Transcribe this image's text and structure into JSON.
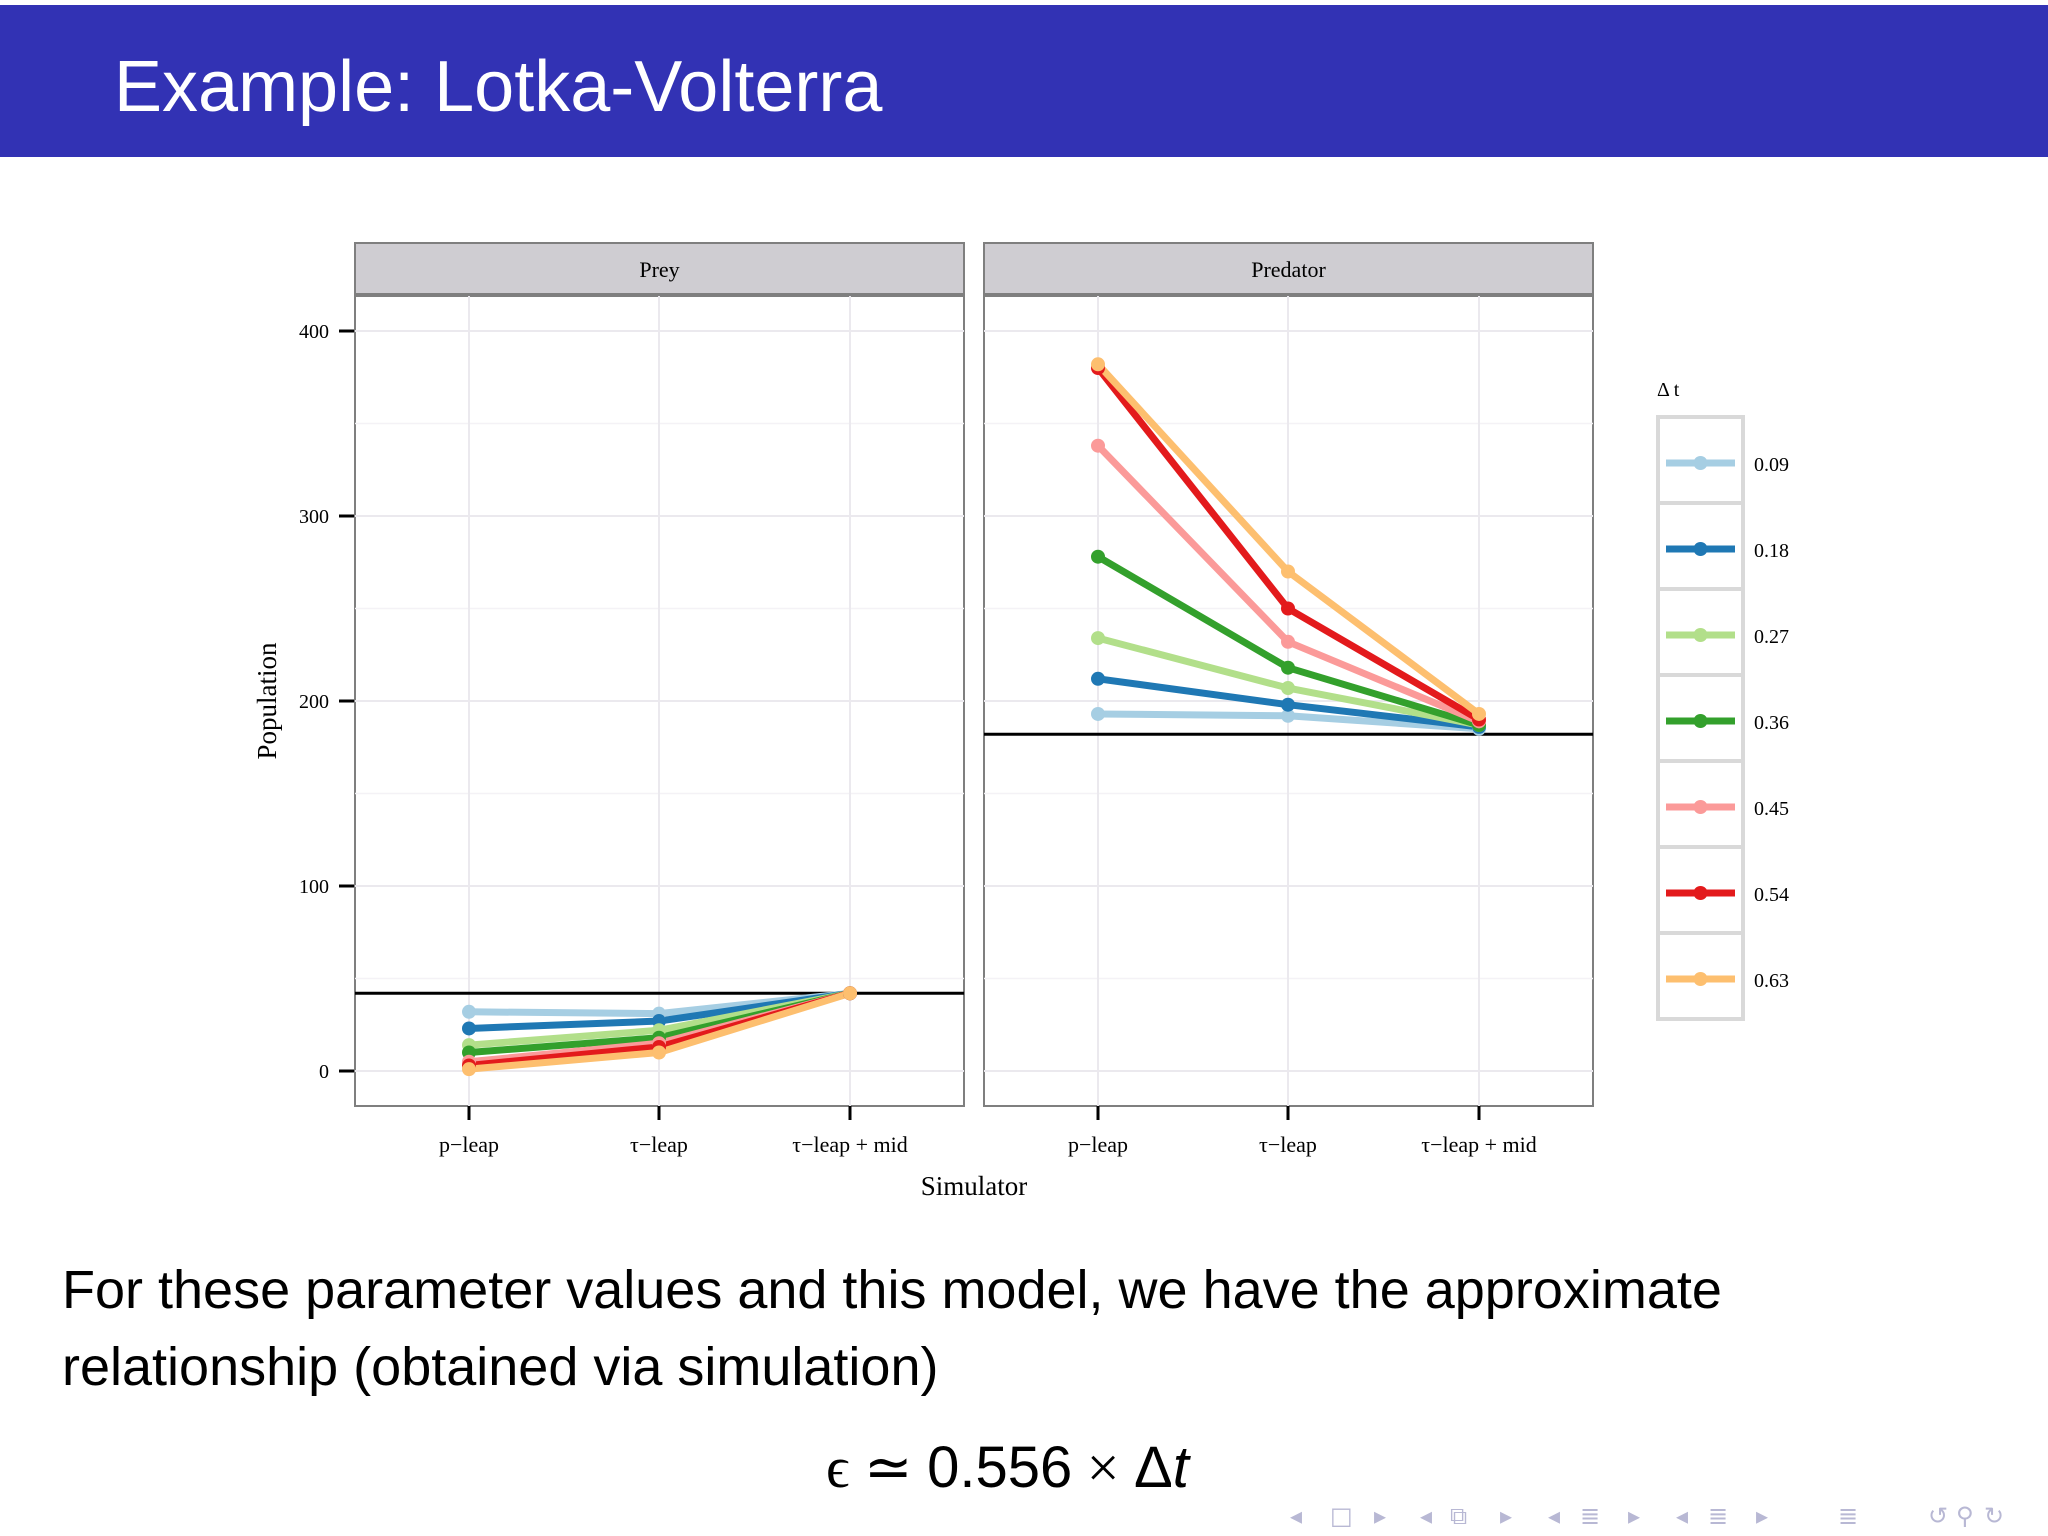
{
  "slide": {
    "title": "Example: Lotka-Volterra",
    "body": "For these parameter values and this model, we have the approximate relationship (obtained via simulation)",
    "formula": {
      "epsilon": "ϵ",
      "approx": "≃",
      "coefficient": "0.556",
      "times": "×",
      "delta": "Δ",
      "variable": "t"
    }
  },
  "navigation": {
    "icons": [
      "nav-left-arrow-icon",
      "frame-icon",
      "nav-right-arrow-icon",
      "nav-left-arrow-icon",
      "frames-icon",
      "nav-right-arrow-icon",
      "nav-left-arrow-icon",
      "subsection-icon",
      "nav-right-arrow-icon",
      "nav-left-arrow-icon",
      "section-icon",
      "nav-right-arrow-icon",
      "toc-icon",
      "back-icon",
      "search-icon",
      "forward-icon"
    ]
  },
  "chart_data": {
    "type": "line",
    "xlabel": "Simulator",
    "ylabel": "Population",
    "categories": [
      "p−leap",
      "τ−leap",
      "τ−leap + mid"
    ],
    "ylim": [
      -18,
      420
    ],
    "yticks": [
      0,
      100,
      200,
      300,
      400
    ],
    "grid": true,
    "legend": {
      "title": "Δ t",
      "position": "right"
    },
    "facets": [
      {
        "name": "Prey",
        "reference_line": 42,
        "series": [
          {
            "name": "0.09",
            "color": "#a6cee3",
            "values": [
              32,
              31,
              42
            ]
          },
          {
            "name": "0.18",
            "color": "#1f78b4",
            "values": [
              23,
              27,
              42
            ]
          },
          {
            "name": "0.27",
            "color": "#b2df8a",
            "values": [
              14,
              22,
              42
            ]
          },
          {
            "name": "0.36",
            "color": "#33a02c",
            "values": [
              10,
              18,
              42
            ]
          },
          {
            "name": "0.45",
            "color": "#fb9a99",
            "values": [
              5,
              15,
              42
            ]
          },
          {
            "name": "0.54",
            "color": "#e31a1c",
            "values": [
              3,
              13,
              42
            ]
          },
          {
            "name": "0.63",
            "color": "#fdbf6f",
            "values": [
              1,
              10,
              42
            ]
          }
        ]
      },
      {
        "name": "Predator",
        "reference_line": 182,
        "series": [
          {
            "name": "0.09",
            "color": "#a6cee3",
            "values": [
              193,
              192,
              185
            ]
          },
          {
            "name": "0.18",
            "color": "#1f78b4",
            "values": [
              212,
              198,
              186
            ]
          },
          {
            "name": "0.27",
            "color": "#b2df8a",
            "values": [
              234,
              207,
              187
            ]
          },
          {
            "name": "0.36",
            "color": "#33a02c",
            "values": [
              278,
              218,
              187
            ]
          },
          {
            "name": "0.45",
            "color": "#fb9a99",
            "values": [
              338,
              232,
              189
            ]
          },
          {
            "name": "0.54",
            "color": "#e31a1c",
            "values": [
              380,
              250,
              190
            ]
          },
          {
            "name": "0.63",
            "color": "#fdbf6f",
            "values": [
              382,
              270,
              193
            ]
          }
        ]
      }
    ]
  }
}
